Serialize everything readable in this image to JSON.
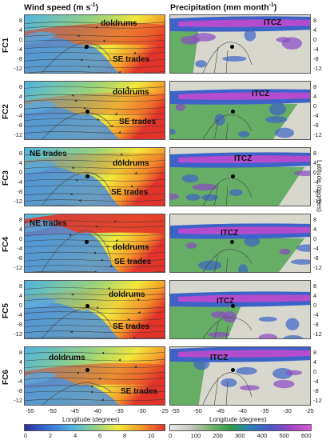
{
  "titles": {
    "wind": "Wind speed (m s",
    "wind_sup": "-1",
    "wind_close": ")",
    "precip": "Precipitation (mm month",
    "precip_sup": "-1",
    "precip_close": ")"
  },
  "rows": [
    {
      "id": "FC1",
      "wind_labels": [
        "doldrums",
        "SE trades"
      ],
      "precip_labels": [
        "ITCZ"
      ]
    },
    {
      "id": "FC2",
      "wind_labels": [
        "doldrums",
        "SE trades"
      ],
      "precip_labels": [
        "ITCZ"
      ]
    },
    {
      "id": "FC3",
      "wind_labels": [
        "NE trades",
        "doldrums",
        "SE trades"
      ],
      "precip_labels": [
        "ITCZ"
      ]
    },
    {
      "id": "FC4",
      "wind_labels": [
        "NE trades",
        "doldrums",
        "SE trades"
      ],
      "precip_labels": [
        "ITCZ"
      ]
    },
    {
      "id": "FC5",
      "wind_labels": [
        "doldrums",
        "SE trades"
      ],
      "precip_labels": [
        "ITCZ"
      ]
    },
    {
      "id": "FC6",
      "wind_labels": [
        "doldrums",
        "SE trades"
      ],
      "precip_labels": [
        "ITCZ"
      ]
    }
  ],
  "lat_ticks": [
    "8",
    "4",
    "0",
    "-4",
    "-8",
    "-12"
  ],
  "lon_ticks": [
    "-55",
    "-50",
    "-45",
    "-40",
    "-35",
    "-30",
    "-25"
  ],
  "axis": {
    "lon_label": "Longitude (degrees)",
    "lat_label": "Latitude (degrees)"
  },
  "wind_colorbar": {
    "ticks": [
      "0",
      "2",
      "4",
      "6",
      "8",
      "10"
    ],
    "colors": [
      "#2b2f9e",
      "#3a6fd8",
      "#4fb3e0",
      "#8fd18a",
      "#f3e83a",
      "#f59a2a",
      "#e2332a"
    ]
  },
  "precip_colorbar": {
    "ticks": [
      "0",
      "100",
      "200",
      "300",
      "400",
      "500",
      "600"
    ],
    "colors": [
      "#e6e6e6",
      "#c9c9c0",
      "#79b36c",
      "#2e9c4a",
      "#2c7fb8",
      "#4a55c9",
      "#a043c4",
      "#d45ad8"
    ]
  }
}
